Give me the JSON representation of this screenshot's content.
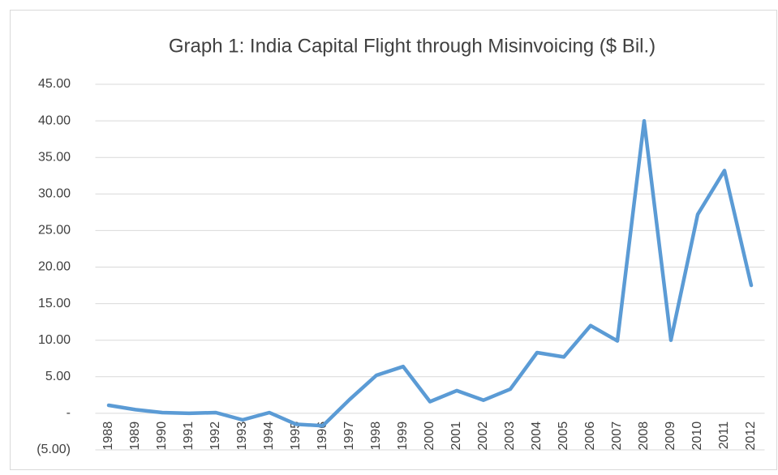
{
  "chart_data": {
    "type": "line",
    "title": "Graph 1: India Capital Flight through Misinvoicing ($ Bil.)",
    "categories": [
      "1988",
      "1989",
      "1990",
      "1991",
      "1992",
      "1993",
      "1994",
      "1995",
      "1996",
      "1997",
      "1998",
      "1999",
      "2000",
      "2001",
      "2002",
      "2003",
      "2004",
      "2005",
      "2006",
      "2007",
      "2008",
      "2009",
      "2010",
      "2011",
      "2012"
    ],
    "series": [
      {
        "name": "Capital Flight",
        "color": "#5b9bd5",
        "values": [
          1.1,
          0.5,
          0.1,
          0.0,
          0.1,
          -0.9,
          0.1,
          -1.5,
          -1.7,
          1.9,
          5.2,
          6.4,
          1.6,
          3.1,
          1.8,
          3.3,
          8.3,
          7.7,
          12.0,
          9.9,
          40.0,
          10.0,
          27.2,
          33.2,
          17.5
        ]
      }
    ],
    "ylim": [
      -5,
      45
    ],
    "yticks": [
      {
        "value": -5,
        "label": "(5.00)"
      },
      {
        "value": 0,
        "label": "-"
      },
      {
        "value": 5,
        "label": "5.00"
      },
      {
        "value": 10,
        "label": "10.00"
      },
      {
        "value": 15,
        "label": "15.00"
      },
      {
        "value": 20,
        "label": "20.00"
      },
      {
        "value": 25,
        "label": "25.00"
      },
      {
        "value": 30,
        "label": "30.00"
      },
      {
        "value": 35,
        "label": "35.00"
      },
      {
        "value": 40,
        "label": "40.00"
      },
      {
        "value": 45,
        "label": "45.00"
      }
    ],
    "grid": true
  }
}
